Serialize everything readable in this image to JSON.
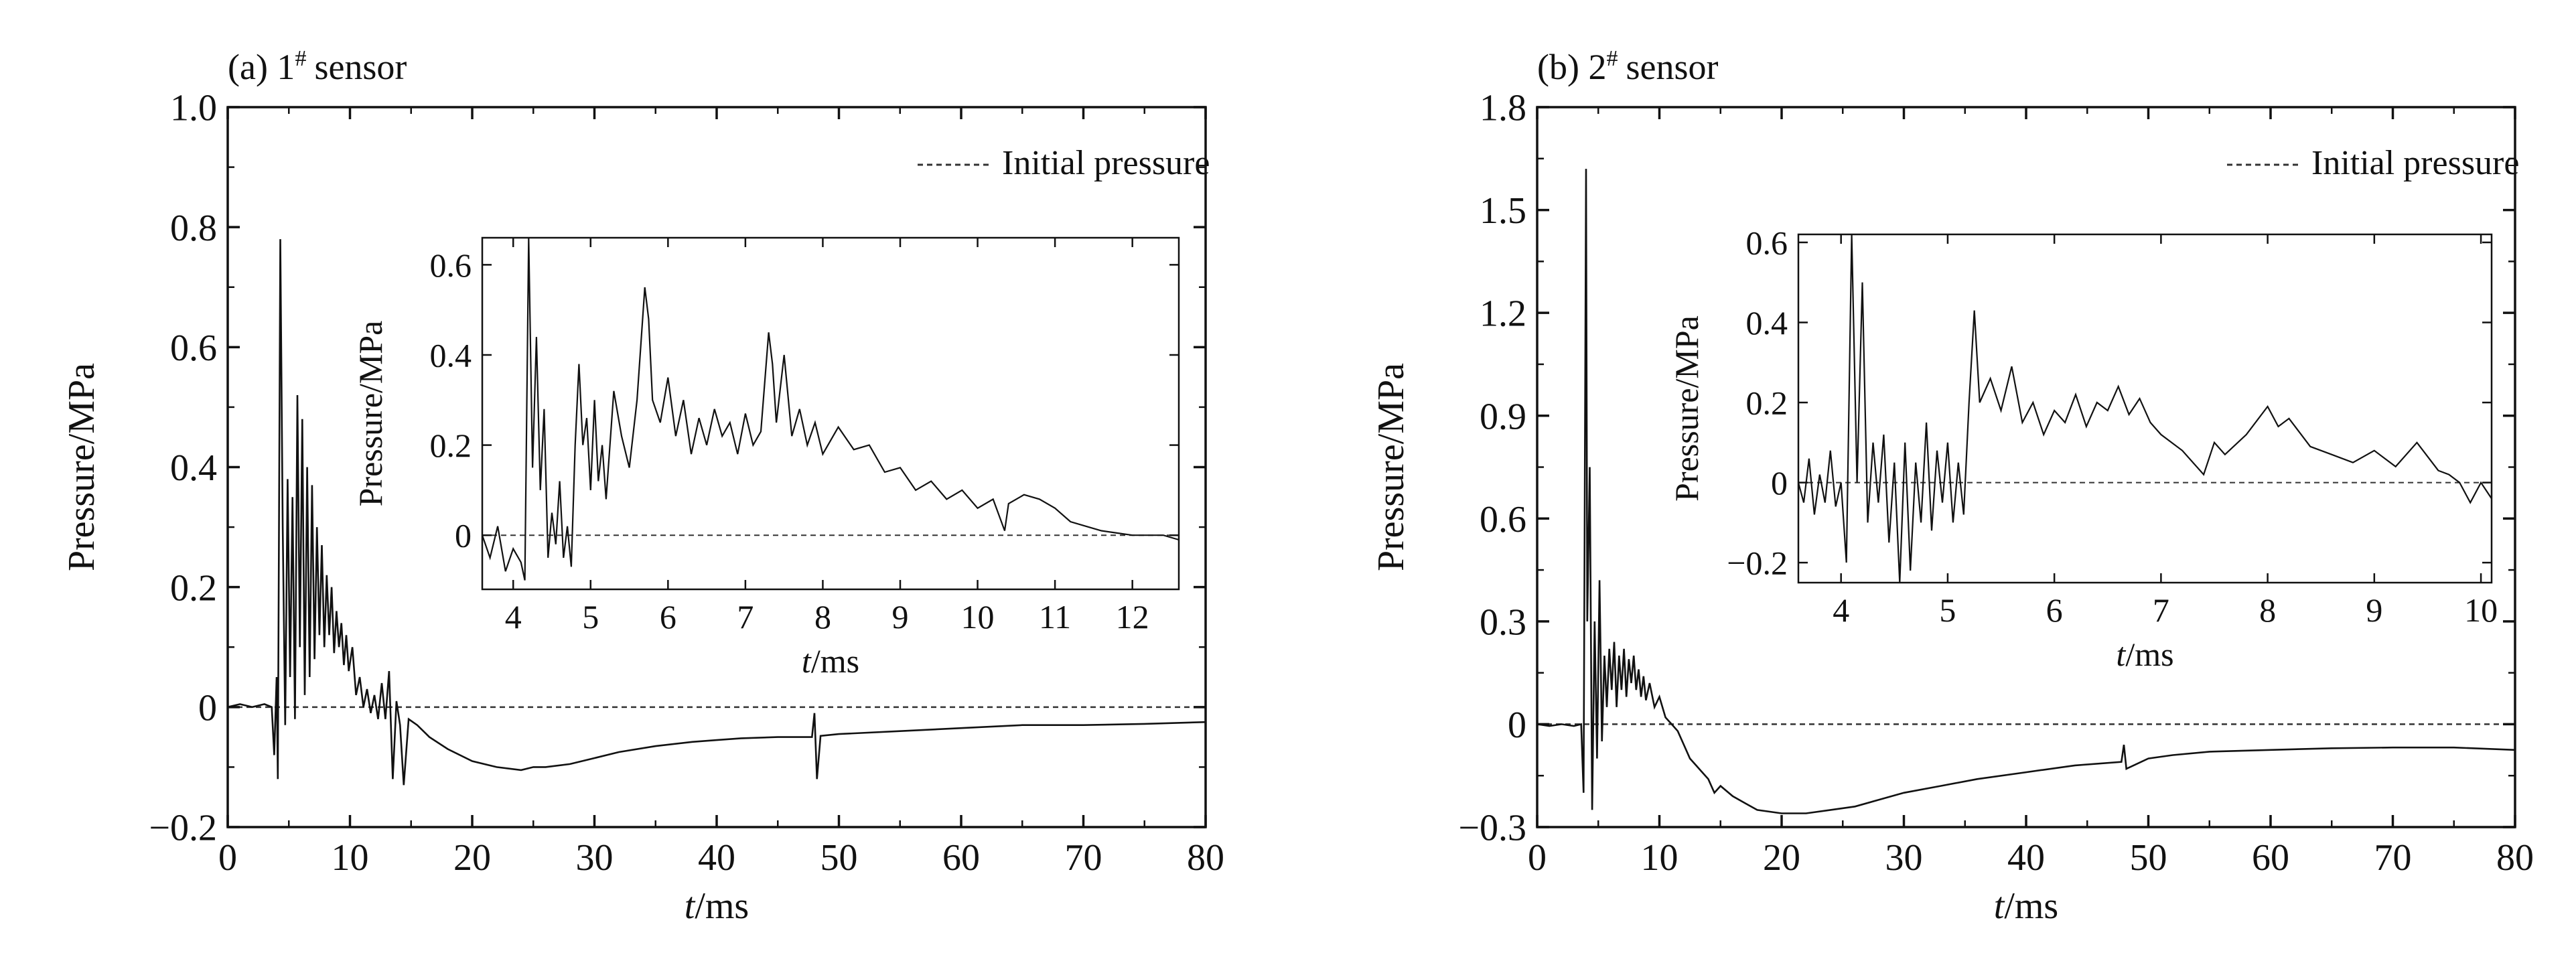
{
  "colors": {
    "trace": "#111111",
    "axes": "#111111",
    "reference": "#333333",
    "background": "#ffffff"
  },
  "chart_data": [
    {
      "panel_label": "(a) 1",
      "panel_sup": "#",
      "panel_suffix": "sensor",
      "type": "line",
      "xlabel_italic": "t",
      "xlabel_unit": "/ms",
      "ylabel": "Pressure/MPa",
      "xlim": [
        0,
        80
      ],
      "ylim": [
        -0.2,
        1.0
      ],
      "xticks": [
        0,
        10,
        20,
        30,
        40,
        50,
        60,
        70,
        80
      ],
      "yticks": [
        -0.2,
        0,
        0.2,
        0.4,
        0.6,
        0.8,
        1.0
      ],
      "ytick_labels": [
        "−0.2",
        "0",
        "0.2",
        "0.4",
        "0.6",
        "0.8",
        "1.0"
      ],
      "grid": false,
      "legend": {
        "position": "top-right",
        "entries": [
          {
            "label": "Initial pressure",
            "style": "dashed"
          }
        ]
      },
      "series": [
        {
          "x": [
            0,
            1,
            2,
            3,
            3.6,
            3.8,
            4.0,
            4.1,
            4.3,
            4.5,
            4.7,
            4.9,
            5.1,
            5.3,
            5.5,
            5.7,
            5.9,
            6.1,
            6.3,
            6.5,
            6.7,
            6.9,
            7.1,
            7.3,
            7.5,
            7.7,
            7.9,
            8.1,
            8.3,
            8.5,
            8.7,
            8.9,
            9.1,
            9.3,
            9.5,
            9.7,
            9.9,
            10.2,
            10.5,
            10.8,
            11.1,
            11.4,
            11.7,
            12.0,
            12.3,
            12.6,
            12.9,
            13.2,
            13.5,
            13.8,
            14.1,
            14.4,
            14.8,
            15.5,
            16.5,
            18,
            20,
            22,
            24,
            25,
            26,
            28,
            30,
            32,
            35,
            38,
            40,
            42,
            45,
            47.8,
            48.0,
            48.2,
            48.5,
            50,
            55,
            60,
            65,
            70,
            75,
            80
          ],
          "y": [
            0,
            0.005,
            0,
            0.005,
            0,
            -0.08,
            0.05,
            -0.12,
            0.78,
            0.3,
            -0.03,
            0.38,
            0.05,
            0.35,
            -0.02,
            0.52,
            0.1,
            0.48,
            0.02,
            0.4,
            0.05,
            0.37,
            0.08,
            0.3,
            0.12,
            0.27,
            0.1,
            0.22,
            0.12,
            0.2,
            0.09,
            0.16,
            0.1,
            0.14,
            0.07,
            0.12,
            0.06,
            0.1,
            0.02,
            0.05,
            0.0,
            0.03,
            -0.01,
            0.02,
            -0.02,
            0.04,
            -0.02,
            0.06,
            -0.12,
            0.01,
            -0.03,
            -0.13,
            -0.02,
            -0.03,
            -0.05,
            -0.07,
            -0.09,
            -0.1,
            -0.105,
            -0.1,
            -0.1,
            -0.095,
            -0.085,
            -0.075,
            -0.065,
            -0.058,
            -0.055,
            -0.052,
            -0.05,
            -0.05,
            -0.01,
            -0.12,
            -0.048,
            -0.045,
            -0.04,
            -0.035,
            -0.03,
            -0.03,
            -0.028,
            -0.025
          ]
        }
      ],
      "inset": {
        "xlabel_italic": "t",
        "xlabel_unit": "/ms",
        "ylabel": "Pressure/MPa",
        "xlim": [
          3.6,
          12.6
        ],
        "ylim": [
          -0.12,
          0.66
        ],
        "xticks": [
          4,
          5,
          6,
          7,
          8,
          9,
          10,
          11,
          12
        ],
        "yticks": [
          0,
          0.2,
          0.4,
          0.6
        ],
        "ytick_labels": [
          "0",
          "0.2",
          "0.4",
          "0.6"
        ],
        "series": [
          {
            "x": [
              3.6,
              3.7,
              3.8,
              3.9,
              4.0,
              4.1,
              4.15,
              4.2,
              4.25,
              4.3,
              4.35,
              4.4,
              4.45,
              4.5,
              4.55,
              4.6,
              4.65,
              4.7,
              4.75,
              4.8,
              4.85,
              4.9,
              4.95,
              5.0,
              5.05,
              5.1,
              5.15,
              5.2,
              5.3,
              5.4,
              5.5,
              5.6,
              5.7,
              5.75,
              5.8,
              5.9,
              6.0,
              6.1,
              6.2,
              6.3,
              6.4,
              6.5,
              6.6,
              6.7,
              6.8,
              6.9,
              7.0,
              7.1,
              7.2,
              7.3,
              7.35,
              7.4,
              7.5,
              7.6,
              7.7,
              7.8,
              7.9,
              8.0,
              8.2,
              8.4,
              8.6,
              8.8,
              9.0,
              9.2,
              9.4,
              9.6,
              9.8,
              10.0,
              10.2,
              10.35,
              10.4,
              10.6,
              10.8,
              11.0,
              11.2,
              11.4,
              11.6,
              11.8,
              12.0,
              12.2,
              12.4,
              12.6
            ],
            "y": [
              0.0,
              -0.05,
              0.02,
              -0.08,
              -0.03,
              -0.06,
              -0.1,
              0.66,
              0.15,
              0.44,
              0.1,
              0.28,
              -0.05,
              0.05,
              -0.02,
              0.12,
              -0.05,
              0.02,
              -0.07,
              0.2,
              0.38,
              0.2,
              0.26,
              0.1,
              0.3,
              0.12,
              0.2,
              0.08,
              0.32,
              0.22,
              0.15,
              0.3,
              0.55,
              0.48,
              0.3,
              0.25,
              0.35,
              0.22,
              0.3,
              0.18,
              0.26,
              0.2,
              0.28,
              0.22,
              0.25,
              0.18,
              0.27,
              0.2,
              0.23,
              0.45,
              0.38,
              0.25,
              0.4,
              0.22,
              0.28,
              0.2,
              0.25,
              0.18,
              0.24,
              0.19,
              0.2,
              0.14,
              0.15,
              0.1,
              0.12,
              0.08,
              0.1,
              0.06,
              0.08,
              0.01,
              0.07,
              0.09,
              0.08,
              0.06,
              0.03,
              0.02,
              0.01,
              0.005,
              0.0,
              0.0,
              0.0,
              -0.01
            ]
          }
        ]
      }
    },
    {
      "panel_label": "(b) 2",
      "panel_sup": "#",
      "panel_suffix": "sensor",
      "type": "line",
      "xlabel_italic": "t",
      "xlabel_unit": "/ms",
      "ylabel": "Pressure/MPa",
      "xlim": [
        0,
        80
      ],
      "ylim": [
        -0.3,
        1.8
      ],
      "xticks": [
        0,
        10,
        20,
        30,
        40,
        50,
        60,
        70,
        80
      ],
      "yticks": [
        -0.3,
        0,
        0.3,
        0.6,
        0.9,
        1.2,
        1.5,
        1.8
      ],
      "ytick_labels": [
        "−0.3",
        "0",
        "0.3",
        "0.6",
        "0.9",
        "1.2",
        "1.5",
        "1.8"
      ],
      "grid": false,
      "legend": {
        "position": "top-right",
        "entries": [
          {
            "label": "Initial pressure",
            "style": "dashed"
          }
        ]
      },
      "series": [
        {
          "x": [
            0,
            1,
            2,
            3,
            3.6,
            3.8,
            4.0,
            4.1,
            4.3,
            4.5,
            4.7,
            4.9,
            5.1,
            5.3,
            5.5,
            5.7,
            5.9,
            6.1,
            6.3,
            6.5,
            6.7,
            6.9,
            7.1,
            7.3,
            7.5,
            7.7,
            7.9,
            8.1,
            8.3,
            8.5,
            8.7,
            8.9,
            9.2,
            9.6,
            10.0,
            10.5,
            11,
            11.5,
            12,
            12.5,
            13,
            13.5,
            14,
            14.5,
            15,
            16,
            17,
            18,
            20,
            22,
            24,
            26,
            28,
            30,
            33,
            36,
            40,
            44,
            47.8,
            48.0,
            48.2,
            50,
            52,
            55,
            60,
            65,
            70,
            75,
            80
          ],
          "y": [
            0,
            -0.005,
            0,
            -0.005,
            0,
            -0.2,
            1.62,
            0.3,
            0.75,
            -0.25,
            0.3,
            -0.1,
            0.42,
            -0.05,
            0.2,
            0.05,
            0.22,
            0.1,
            0.24,
            0.05,
            0.2,
            0.1,
            0.22,
            0.08,
            0.19,
            0.12,
            0.2,
            0.1,
            0.16,
            0.08,
            0.14,
            0.07,
            0.12,
            0.05,
            0.08,
            0.02,
            0.0,
            -0.02,
            -0.06,
            -0.1,
            -0.12,
            -0.14,
            -0.16,
            -0.2,
            -0.18,
            -0.21,
            -0.23,
            -0.25,
            -0.26,
            -0.26,
            -0.25,
            -0.24,
            -0.22,
            -0.2,
            -0.18,
            -0.16,
            -0.14,
            -0.12,
            -0.11,
            -0.06,
            -0.13,
            -0.1,
            -0.09,
            -0.08,
            -0.075,
            -0.07,
            -0.068,
            -0.068,
            -0.075
          ]
        }
      ],
      "inset": {
        "xlabel_italic": "t",
        "xlabel_unit": "/ms",
        "ylabel": "Pressure/MPa",
        "xlim": [
          3.6,
          10.1
        ],
        "ylim": [
          -0.25,
          0.62
        ],
        "xticks": [
          4,
          5,
          6,
          7,
          8,
          9,
          10
        ],
        "yticks": [
          -0.2,
          0,
          0.2,
          0.4,
          0.6
        ],
        "ytick_labels": [
          "−0.2",
          "0",
          "0.2",
          "0.4",
          "0.6"
        ],
        "series": [
          {
            "x": [
              3.6,
              3.65,
              3.7,
              3.75,
              3.8,
              3.85,
              3.9,
              3.95,
              4.0,
              4.05,
              4.1,
              4.15,
              4.2,
              4.25,
              4.3,
              4.35,
              4.4,
              4.45,
              4.5,
              4.55,
              4.6,
              4.65,
              4.7,
              4.75,
              4.8,
              4.85,
              4.9,
              4.95,
              5.0,
              5.05,
              5.1,
              5.15,
              5.2,
              5.25,
              5.3,
              5.4,
              5.5,
              5.6,
              5.7,
              5.8,
              5.9,
              6.0,
              6.1,
              6.2,
              6.3,
              6.4,
              6.5,
              6.6,
              6.7,
              6.8,
              6.9,
              7.0,
              7.2,
              7.4,
              7.5,
              7.6,
              7.8,
              8.0,
              8.1,
              8.2,
              8.4,
              8.6,
              8.8,
              9.0,
              9.2,
              9.4,
              9.6,
              9.7,
              9.8,
              9.9,
              10.0,
              10.1
            ],
            "y": [
              0.0,
              -0.05,
              0.06,
              -0.08,
              0.02,
              -0.05,
              0.08,
              -0.06,
              0.0,
              -0.2,
              0.62,
              0.0,
              0.5,
              -0.1,
              0.1,
              -0.05,
              0.12,
              -0.15,
              0.05,
              -0.25,
              0.1,
              -0.22,
              0.05,
              -0.1,
              0.15,
              -0.12,
              0.08,
              -0.05,
              0.1,
              -0.1,
              0.05,
              -0.08,
              0.2,
              0.43,
              0.2,
              0.26,
              0.18,
              0.29,
              0.15,
              0.2,
              0.12,
              0.18,
              0.15,
              0.22,
              0.14,
              0.2,
              0.18,
              0.24,
              0.17,
              0.21,
              0.15,
              0.12,
              0.08,
              0.02,
              0.1,
              0.07,
              0.12,
              0.19,
              0.14,
              0.16,
              0.09,
              0.07,
              0.05,
              0.08,
              0.04,
              0.1,
              0.03,
              0.02,
              0.0,
              -0.05,
              0.0,
              -0.04
            ]
          }
        ]
      }
    }
  ]
}
